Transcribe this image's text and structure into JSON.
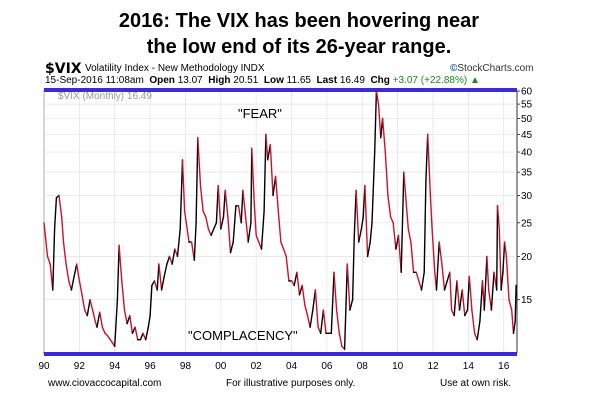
{
  "headline": [
    "2016: The VIX has been hovering near",
    "the low end of its 26-year range."
  ],
  "symbol": "$VIX",
  "description": "Volatility Index - New Methodology  INDX",
  "brand": "StockCharts.com",
  "quote": {
    "datetime": "15-Sep-2016 11:08am",
    "open_label": "Open",
    "open": "13.07",
    "high_label": "High",
    "high": "20.51",
    "low_label": "Low",
    "low": "11.65",
    "last_label": "Last",
    "last": "16.49",
    "chg_label": "Chg",
    "chg": "+3.07 (+22.88%)"
  },
  "legend_text": "$VIX (Monthly) 16.49",
  "annotations": {
    "fear": "\"FEAR\"",
    "complacency": "\"COMPLACENCY\""
  },
  "footer": {
    "left": "www.ciovaccocapital.com",
    "center": "For illustrative purposes only.",
    "right": "Use at own risk."
  },
  "colors": {
    "line_red": "#d0102a",
    "line_black": "#000000",
    "band": "#3b2bd6"
  },
  "chart_data": {
    "type": "line",
    "scale": "log",
    "ylim": [
      10.6,
      60
    ],
    "y_ticks": [
      15,
      20,
      25,
      30,
      35,
      40,
      45,
      50,
      55,
      60
    ],
    "xlim": [
      1990,
      2016.75
    ],
    "x_ticks": [
      "90",
      "92",
      "94",
      "96",
      "98",
      "00",
      "02",
      "04",
      "06",
      "08",
      "10",
      "12",
      "14",
      "16"
    ],
    "x_tick_values": [
      1990,
      1992,
      1994,
      1996,
      1998,
      2000,
      2002,
      2004,
      2006,
      2008,
      2010,
      2012,
      2014,
      2016
    ],
    "series": [
      {
        "points": [
          [
            1990.0,
            25
          ],
          [
            1990.2,
            20
          ],
          [
            1990.35,
            19
          ],
          [
            1990.5,
            16
          ],
          [
            1990.6,
            24
          ],
          [
            1990.7,
            29.5
          ],
          [
            1990.85,
            30
          ],
          [
            1991.0,
            26
          ],
          [
            1991.1,
            22
          ],
          [
            1991.25,
            19
          ],
          [
            1991.4,
            17
          ],
          [
            1991.55,
            16
          ],
          [
            1991.7,
            17.5
          ],
          [
            1991.85,
            19
          ],
          [
            1992.0,
            17
          ],
          [
            1992.15,
            15.5
          ],
          [
            1992.3,
            14
          ],
          [
            1992.45,
            13.5
          ],
          [
            1992.6,
            15
          ],
          [
            1992.75,
            14
          ],
          [
            1992.9,
            13
          ],
          [
            1993.0,
            12.5
          ],
          [
            1993.15,
            13.8
          ],
          [
            1993.3,
            12.5
          ],
          [
            1993.45,
            12
          ],
          [
            1993.6,
            11.8
          ],
          [
            1993.75,
            11.5
          ],
          [
            1993.9,
            11.2
          ],
          [
            1994.0,
            11
          ],
          [
            1994.15,
            15
          ],
          [
            1994.25,
            21.5
          ],
          [
            1994.4,
            17
          ],
          [
            1994.55,
            14
          ],
          [
            1994.7,
            12.8
          ],
          [
            1994.85,
            13.5
          ],
          [
            1995.0,
            12
          ],
          [
            1995.15,
            12.5
          ],
          [
            1995.3,
            11.5
          ],
          [
            1995.45,
            11.5
          ],
          [
            1995.6,
            12
          ],
          [
            1995.75,
            11.5
          ],
          [
            1995.9,
            12.5
          ],
          [
            1996.0,
            13.5
          ],
          [
            1996.1,
            16.5
          ],
          [
            1996.25,
            17
          ],
          [
            1996.4,
            16
          ],
          [
            1996.5,
            19
          ],
          [
            1996.65,
            16
          ],
          [
            1996.8,
            17.5
          ],
          [
            1996.95,
            19
          ],
          [
            1997.1,
            20
          ],
          [
            1997.25,
            19
          ],
          [
            1997.4,
            21
          ],
          [
            1997.55,
            20
          ],
          [
            1997.7,
            24
          ],
          [
            1997.83,
            38
          ],
          [
            1997.95,
            27
          ],
          [
            1998.05,
            25
          ],
          [
            1998.2,
            22
          ],
          [
            1998.35,
            22
          ],
          [
            1998.5,
            19.5
          ],
          [
            1998.6,
            25
          ],
          [
            1998.7,
            44
          ],
          [
            1998.85,
            32
          ],
          [
            1999.0,
            27
          ],
          [
            1999.15,
            26
          ],
          [
            1999.3,
            24
          ],
          [
            1999.45,
            23
          ],
          [
            1999.6,
            24
          ],
          [
            1999.75,
            25
          ],
          [
            1999.85,
            32
          ],
          [
            2000.0,
            24
          ],
          [
            2000.15,
            26
          ],
          [
            2000.25,
            31
          ],
          [
            2000.4,
            26
          ],
          [
            2000.55,
            20.5
          ],
          [
            2000.7,
            22
          ],
          [
            2000.85,
            28
          ],
          [
            2001.0,
            28
          ],
          [
            2001.15,
            25
          ],
          [
            2001.25,
            31
          ],
          [
            2001.4,
            26
          ],
          [
            2001.55,
            22
          ],
          [
            2001.7,
            25
          ],
          [
            2001.75,
            41
          ],
          [
            2001.9,
            28
          ],
          [
            2002.0,
            23
          ],
          [
            2002.15,
            22
          ],
          [
            2002.3,
            21
          ],
          [
            2002.45,
            27
          ],
          [
            2002.55,
            45
          ],
          [
            2002.65,
            38
          ],
          [
            2002.8,
            42
          ],
          [
            2002.95,
            30
          ],
          [
            2003.1,
            34
          ],
          [
            2003.25,
            27
          ],
          [
            2003.4,
            22
          ],
          [
            2003.55,
            21
          ],
          [
            2003.7,
            20
          ],
          [
            2003.85,
            17
          ],
          [
            2004.0,
            17
          ],
          [
            2004.15,
            16.5
          ],
          [
            2004.3,
            18
          ],
          [
            2004.45,
            15.5
          ],
          [
            2004.6,
            16.5
          ],
          [
            2004.75,
            14.5
          ],
          [
            2004.9,
            13.5
          ],
          [
            2005.05,
            12.5
          ],
          [
            2005.2,
            14
          ],
          [
            2005.35,
            16
          ],
          [
            2005.5,
            12.5
          ],
          [
            2005.65,
            12
          ],
          [
            2005.8,
            14
          ],
          [
            2005.95,
            12
          ],
          [
            2006.1,
            12
          ],
          [
            2006.25,
            12
          ],
          [
            2006.4,
            18
          ],
          [
            2006.55,
            14
          ],
          [
            2006.7,
            12
          ],
          [
            2006.85,
            11
          ],
          [
            2007.0,
            10.8
          ],
          [
            2007.15,
            19
          ],
          [
            2007.3,
            14
          ],
          [
            2007.45,
            15
          ],
          [
            2007.55,
            23
          ],
          [
            2007.65,
            31
          ],
          [
            2007.8,
            22
          ],
          [
            2007.95,
            24
          ],
          [
            2008.05,
            26
          ],
          [
            2008.15,
            32
          ],
          [
            2008.3,
            20
          ],
          [
            2008.45,
            22
          ],
          [
            2008.55,
            25
          ],
          [
            2008.7,
            40
          ],
          [
            2008.8,
            60
          ],
          [
            2008.92,
            55
          ],
          [
            2009.05,
            44
          ],
          [
            2009.15,
            50
          ],
          [
            2009.3,
            40
          ],
          [
            2009.45,
            30
          ],
          [
            2009.6,
            26
          ],
          [
            2009.75,
            25
          ],
          [
            2009.9,
            21
          ],
          [
            2010.05,
            23
          ],
          [
            2010.2,
            18
          ],
          [
            2010.35,
            35
          ],
          [
            2010.45,
            30
          ],
          [
            2010.6,
            24
          ],
          [
            2010.75,
            22
          ],
          [
            2010.9,
            18
          ],
          [
            2011.05,
            18
          ],
          [
            2011.2,
            17
          ],
          [
            2011.35,
            16
          ],
          [
            2011.5,
            18
          ],
          [
            2011.6,
            33
          ],
          [
            2011.7,
            45
          ],
          [
            2011.85,
            30
          ],
          [
            2011.95,
            24
          ],
          [
            2012.1,
            18
          ],
          [
            2012.2,
            16
          ],
          [
            2012.35,
            22
          ],
          [
            2012.5,
            19
          ],
          [
            2012.65,
            16
          ],
          [
            2012.8,
            17
          ],
          [
            2012.95,
            18
          ],
          [
            2013.05,
            14
          ],
          [
            2013.2,
            13.5
          ],
          [
            2013.35,
            17
          ],
          [
            2013.5,
            14
          ],
          [
            2013.65,
            16
          ],
          [
            2013.8,
            13.5
          ],
          [
            2013.95,
            14
          ],
          [
            2014.05,
            17.5
          ],
          [
            2014.2,
            14
          ],
          [
            2014.35,
            12
          ],
          [
            2014.5,
            11.5
          ],
          [
            2014.65,
            13
          ],
          [
            2014.8,
            17
          ],
          [
            2014.9,
            14
          ],
          [
            2015.05,
            20
          ],
          [
            2015.15,
            16
          ],
          [
            2015.3,
            14
          ],
          [
            2015.45,
            18
          ],
          [
            2015.6,
            16
          ],
          [
            2015.65,
            28
          ],
          [
            2015.75,
            24
          ],
          [
            2015.85,
            16
          ],
          [
            2015.95,
            18
          ],
          [
            2016.05,
            22
          ],
          [
            2016.15,
            20
          ],
          [
            2016.3,
            15
          ],
          [
            2016.45,
            14
          ],
          [
            2016.55,
            12
          ],
          [
            2016.65,
            13
          ],
          [
            2016.7,
            16.49
          ]
        ]
      }
    ]
  }
}
